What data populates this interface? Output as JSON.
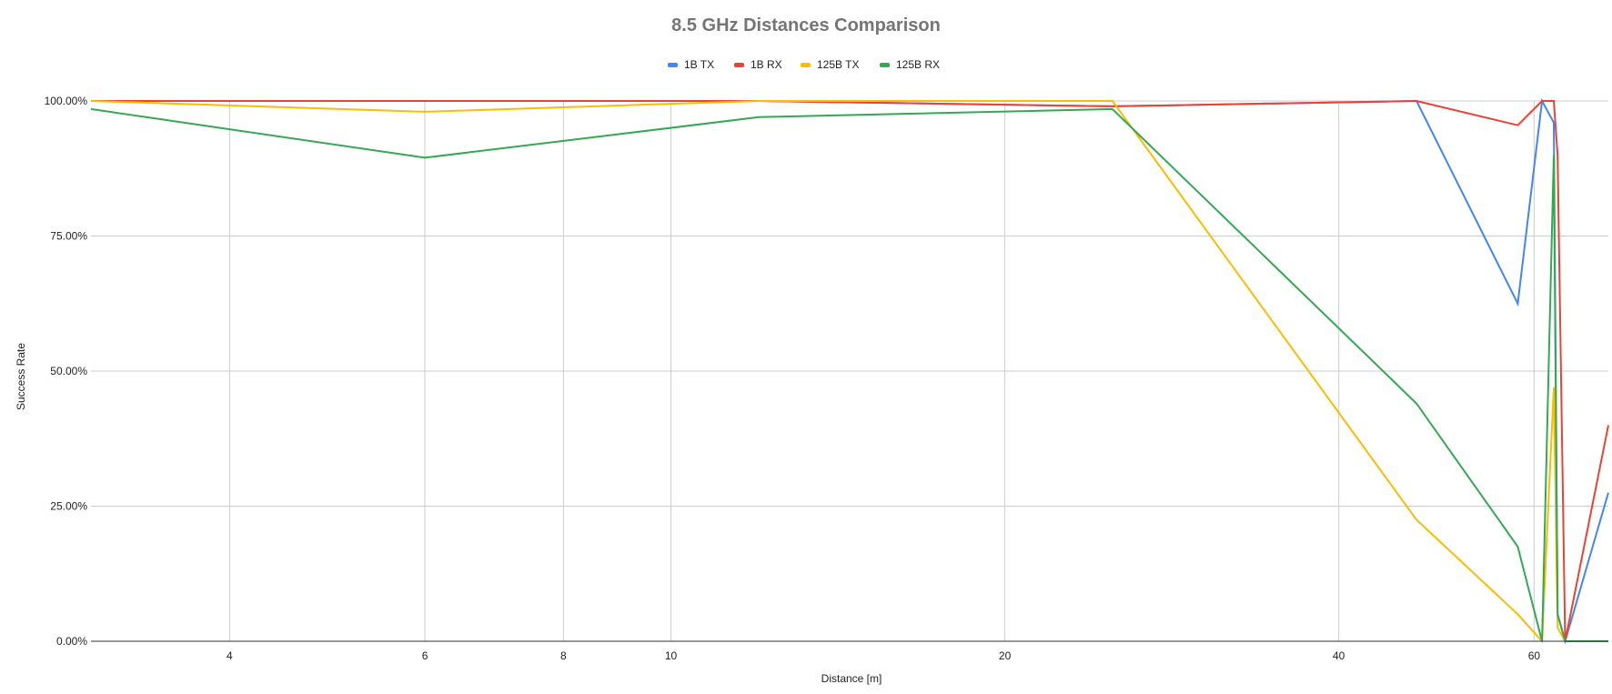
{
  "chart_data": {
    "type": "line",
    "title": "8.5 GHz Distances Comparison",
    "xlabel": "Distance [m]",
    "ylabel": "Success Rate",
    "x_scale": "log",
    "xlim": [
      3,
      70
    ],
    "ylim": [
      0,
      100
    ],
    "x_ticks": [
      4,
      6,
      8,
      10,
      20,
      40,
      60
    ],
    "y_ticks": [
      "0.00%",
      "25.00%",
      "50.00%",
      "75.00%",
      "100.00%"
    ],
    "grid": true,
    "legend_position": "top",
    "x": [
      3,
      6,
      12,
      25,
      47,
      58,
      61,
      62.5,
      63,
      64,
      70
    ],
    "series": [
      {
        "name": "1B TX",
        "color": "#4285f4",
        "values": [
          100,
          100,
          100,
          99,
          100,
          62.5,
          100,
          96,
          5,
          0,
          27.5
        ]
      },
      {
        "name": "1B RX",
        "color": "#ea4335",
        "values": [
          100,
          100,
          100,
          99,
          100,
          95.5,
          100,
          100,
          90,
          0,
          40
        ]
      },
      {
        "name": "125B TX",
        "color": "#fbbc04",
        "values": [
          100,
          98,
          100,
          100,
          22.5,
          5,
          0,
          47,
          2.5,
          0,
          0
        ]
      },
      {
        "name": "125B RX",
        "color": "#34a853",
        "values": [
          98.5,
          89.5,
          97,
          98.5,
          44,
          17.5,
          0,
          90,
          5,
          0,
          0
        ]
      }
    ]
  }
}
